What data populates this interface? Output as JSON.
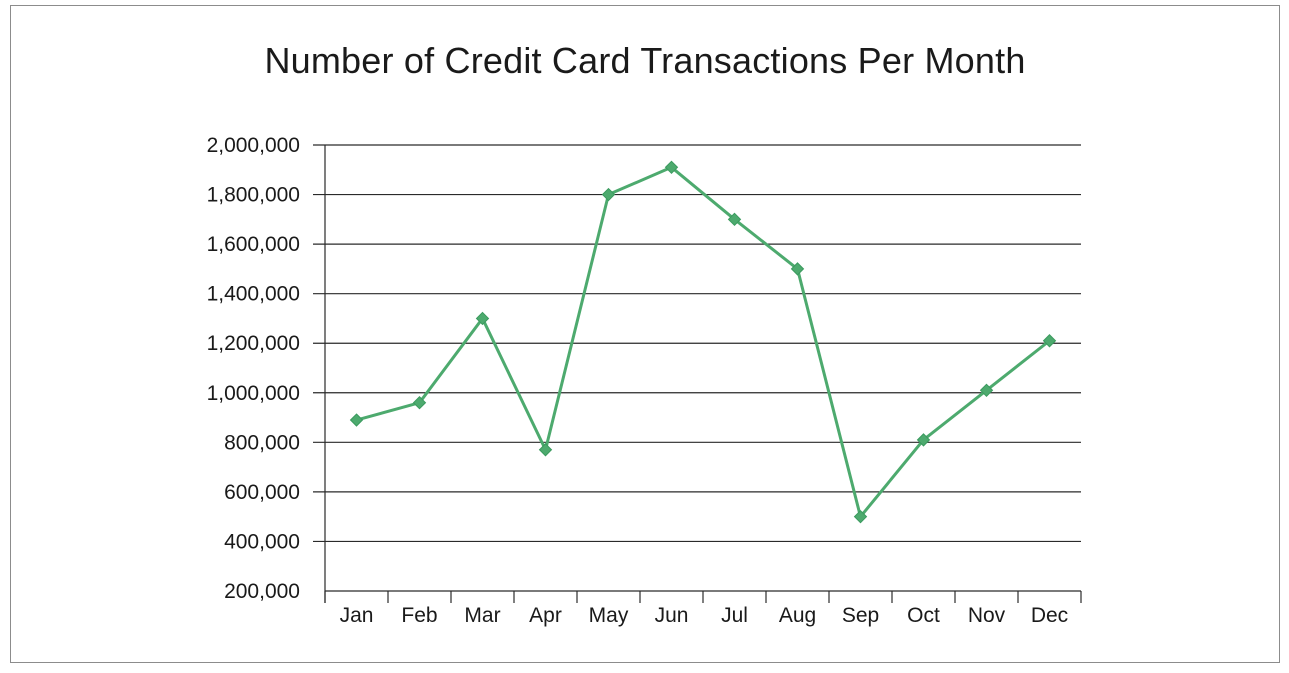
{
  "chart_data": {
    "type": "line",
    "title": "Number of Credit Card Transactions Per Month",
    "xlabel": "",
    "ylabel": "",
    "categories": [
      "Jan",
      "Feb",
      "Mar",
      "Apr",
      "May",
      "Jun",
      "Jul",
      "Aug",
      "Sep",
      "Oct",
      "Nov",
      "Dec"
    ],
    "values": [
      890000,
      960000,
      1300000,
      770000,
      1800000,
      1910000,
      1700000,
      1500000,
      500000,
      810000,
      1010000,
      1210000
    ],
    "ylim": [
      200000,
      2000000
    ],
    "yticks": [
      200000,
      400000,
      600000,
      800000,
      1000000,
      1200000,
      1400000,
      1600000,
      1800000,
      2000000
    ],
    "ytick_labels": [
      "200,000",
      "400,000",
      "600,000",
      "800,000",
      "1,000,000",
      "1,200,000",
      "1,400,000",
      "1,600,000",
      "1,800,000",
      "2,000,000"
    ],
    "grid": true,
    "legend": "none",
    "series_color": "#4daa6e",
    "marker": "diamond"
  }
}
